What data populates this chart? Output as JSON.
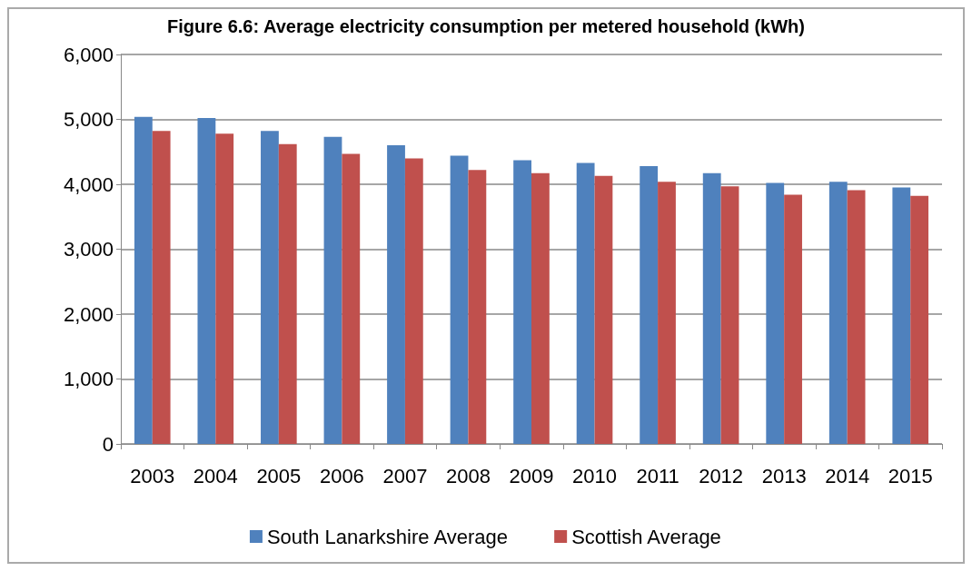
{
  "chart_data": {
    "type": "bar",
    "title": "Figure 6.6: Average electricity consumption per metered household (kWh)",
    "categories": [
      "2003",
      "2004",
      "2005",
      "2006",
      "2007",
      "2008",
      "2009",
      "2010",
      "2011",
      "2012",
      "2013",
      "2014",
      "2015"
    ],
    "series": [
      {
        "name": "South Lanarkshire Average",
        "color": "#4f81bd",
        "values": [
          5040,
          5020,
          4820,
          4730,
          4600,
          4440,
          4370,
          4330,
          4280,
          4170,
          4020,
          4040,
          3950
        ]
      },
      {
        "name": "Scottish Average",
        "color": "#c0504d",
        "values": [
          4820,
          4780,
          4620,
          4470,
          4400,
          4220,
          4170,
          4130,
          4040,
          3970,
          3840,
          3910,
          3820
        ]
      }
    ],
    "ylim": [
      0,
      6000
    ],
    "yticks": [
      0,
      {
        "value": 1000,
        "label": "1,000"
      },
      {
        "value": 2000,
        "label": "2,000"
      },
      {
        "value": 3000,
        "label": "3,000"
      },
      {
        "value": 4000,
        "label": "4,000"
      },
      {
        "value": 5000,
        "label": "5,000"
      },
      {
        "value": 6000,
        "label": "6,000"
      }
    ],
    "grid": "y",
    "legend": "bottom"
  }
}
